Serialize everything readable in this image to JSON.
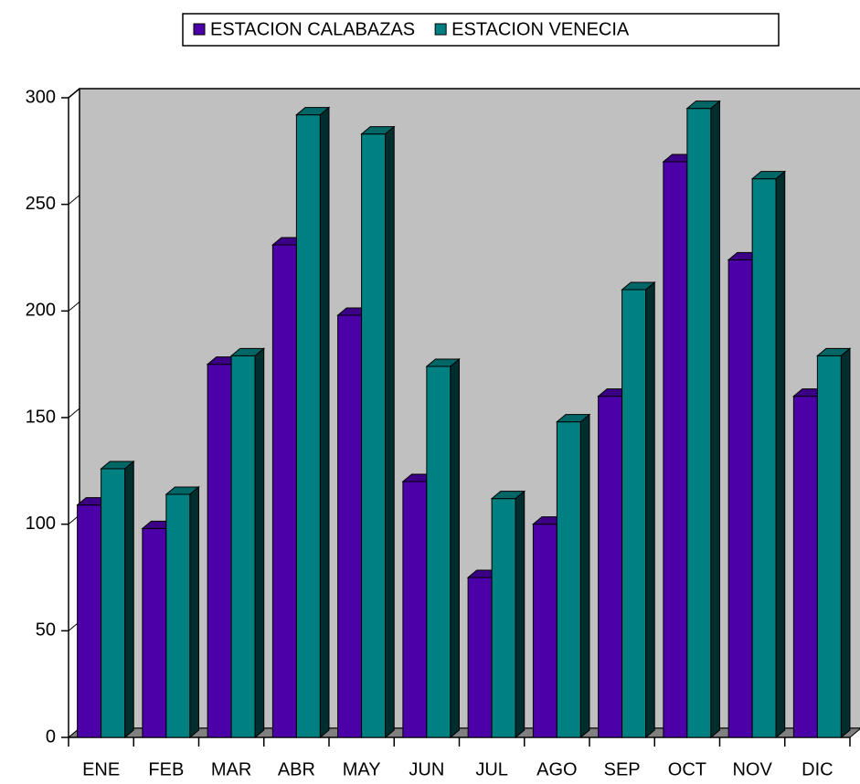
{
  "chart_data": {
    "type": "bar3d",
    "categories": [
      "ENE",
      "FEB",
      "MAR",
      "ABR",
      "MAY",
      "JUN",
      "JUL",
      "AGO",
      "SEP",
      "OCT",
      "NOV",
      "DIC"
    ],
    "series": [
      {
        "name": "ESTACION CALABAZAS",
        "color": "#4b00a8",
        "values": [
          109,
          98,
          175,
          231,
          198,
          120,
          75,
          100,
          160,
          270,
          224,
          160
        ]
      },
      {
        "name": "ESTACION VENECIA",
        "color": "#008080",
        "values": [
          126,
          114,
          179,
          292,
          283,
          174,
          112,
          148,
          210,
          295,
          262,
          179
        ]
      }
    ],
    "ylim": [
      0,
      300
    ],
    "yticks": [
      0,
      50,
      100,
      150,
      200,
      250,
      300
    ],
    "legend": "top"
  }
}
